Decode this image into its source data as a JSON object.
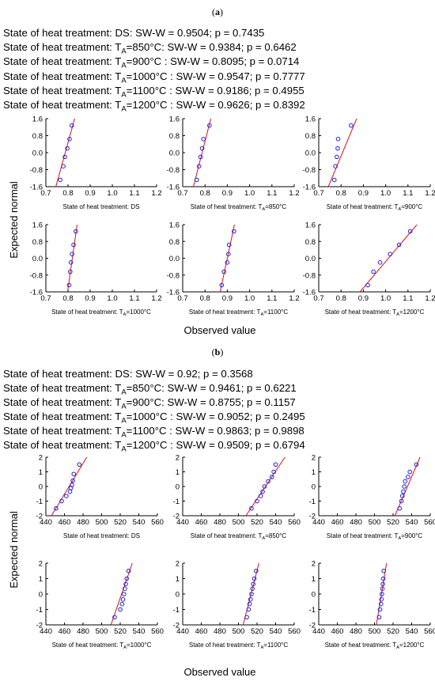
{
  "panel_labels": [
    "(a)",
    "(b)"
  ],
  "stats_lines": [
    {
      "prefix": "State of heat treatment: ",
      "base": "DS",
      "sub": "",
      "suffix": ":  SW-W = 0.9504; p = 0.7435"
    },
    {
      "prefix": "State of heat treatment: ",
      "base": "T",
      "sub": "A",
      "suffix": "=850°C:  SW-W = 0.9384; p = 0.6462"
    },
    {
      "prefix": "State of heat treatment: ",
      "base": "T",
      "sub": "A",
      "suffix": "=900°C :  SW-W = 0.8095; p = 0.0714"
    },
    {
      "prefix": "State of heat treatment: ",
      "base": "T",
      "sub": "A",
      "suffix": "=1000°C :  SW-W = 0.9547; p = 0.7777"
    },
    {
      "prefix": "State of heat treatment: ",
      "base": "T",
      "sub": "A",
      "suffix": "=1100°C :  SW-W = 0.9186; p = 0.4955"
    },
    {
      "prefix": "State of heat treatment: ",
      "base": "T",
      "sub": "A",
      "suffix": "=1200°C :  SW-W = 0.9626; p = 0.8392"
    },
    {
      "prefix": "State of heat treatment: ",
      "base": "DS",
      "sub": "",
      "suffix": ":  SW-W = 0.92; p = 0.3568"
    },
    {
      "prefix": "State of heat treatment: ",
      "base": "T",
      "sub": "A",
      "suffix": "=850°C:  SW-W = 0.9461; p = 0.6221"
    },
    {
      "prefix": "State of heat treatment: ",
      "base": "T",
      "sub": "A",
      "suffix": "=900°C:  SW-W = 0.8755; p = 0.1157"
    },
    {
      "prefix": "State of heat treatment: ",
      "base": "T",
      "sub": "A",
      "suffix": "=1000°C :  SW-W = 0.9052; p = 0.2495"
    },
    {
      "prefix": "State of heat treatment: ",
      "base": "T",
      "sub": "A",
      "suffix": "=1100°C :  SW-W = 0.9863; p = 0.9898"
    },
    {
      "prefix": "State of heat treatment: ",
      "base": "T",
      "sub": "A",
      "suffix": "=1200°C :  SW-W = 0.9509; p = 0.6794"
    }
  ],
  "colors": {
    "points": "#1f22e0",
    "fit_line": "#e01010",
    "axis": "#000000",
    "text": "#000000"
  },
  "y_axis_label": "Expected normal",
  "x_axis_label": "Observed value",
  "chart_data": [
    {
      "type": "scatter",
      "panel": "(a)",
      "title_prefix": "State of heat treatment: ",
      "title_base": "DS",
      "title_sub": "",
      "title_suffix": "",
      "xlim": [
        0.7,
        1.2
      ],
      "ylim": [
        -1.6,
        1.6
      ],
      "xticks": [
        "0.7",
        "0.8",
        "0.9",
        "1.0",
        "1.1",
        "1.2"
      ],
      "yticks": [
        "1.6",
        "0.8",
        "0.0",
        "-0.8",
        "-1.6"
      ],
      "x": [
        0.765,
        0.779,
        0.786,
        0.797,
        0.807,
        0.817
      ],
      "y": [
        -1.28,
        -0.64,
        -0.2,
        0.2,
        0.64,
        1.28
      ],
      "fit_line": [
        [
          0.745,
          -1.6
        ],
        [
          0.83,
          1.6
        ]
      ]
    },
    {
      "type": "scatter",
      "panel": "(a)",
      "title_prefix": "State of heat treatment: ",
      "title_base": "T",
      "title_sub": "A",
      "title_suffix": "=850°C",
      "xlim": [
        0.7,
        1.2
      ],
      "ylim": [
        -1.6,
        1.6
      ],
      "xticks": [
        "0.7",
        "0.8",
        "0.9",
        "1.0",
        "1.1",
        "1.2"
      ],
      "yticks": [
        "1.6",
        "0.8",
        "0.0",
        "-0.8",
        "-1.6"
      ],
      "x": [
        0.763,
        0.773,
        0.78,
        0.787,
        0.793,
        0.82
      ],
      "y": [
        -1.28,
        -0.64,
        -0.2,
        0.2,
        0.64,
        1.28
      ],
      "fit_line": [
        [
          0.748,
          -1.6
        ],
        [
          0.826,
          1.6
        ]
      ]
    },
    {
      "type": "scatter",
      "panel": "(a)",
      "title_prefix": "State of heat treatment: ",
      "title_base": "T",
      "title_sub": "A",
      "title_suffix": "=900°C",
      "xlim": [
        0.7,
        1.2
      ],
      "ylim": [
        -1.6,
        1.6
      ],
      "xticks": [
        "0.7",
        "0.8",
        "0.9",
        "1.0",
        "1.1",
        "1.2"
      ],
      "yticks": [
        "1.6",
        "0.8",
        "0.0",
        "-0.8",
        "-1.6"
      ],
      "x": [
        0.77,
        0.775,
        0.781,
        0.785,
        0.787,
        0.845
      ],
      "y": [
        -1.28,
        -0.64,
        -0.2,
        0.2,
        0.64,
        1.28
      ],
      "fit_line": [
        [
          0.743,
          -1.6
        ],
        [
          0.87,
          1.6
        ]
      ]
    },
    {
      "type": "scatter",
      "panel": "(a)",
      "title_prefix": "State of heat treatment: ",
      "title_base": "T",
      "title_sub": "A",
      "title_suffix": "=1000°C",
      "xlim": [
        0.7,
        1.2
      ],
      "ylim": [
        -1.6,
        1.6
      ],
      "xticks": [
        "0.7",
        "0.8",
        "0.9",
        "1.0",
        "1.1",
        "1.2"
      ],
      "yticks": [
        "1.6",
        "0.8",
        "0.0",
        "-0.8",
        "-1.6"
      ],
      "x": [
        0.805,
        0.81,
        0.813,
        0.818,
        0.825,
        0.835
      ],
      "y": [
        -1.28,
        -0.64,
        -0.2,
        0.2,
        0.64,
        1.28
      ],
      "fit_line": [
        [
          0.798,
          -1.6
        ],
        [
          0.841,
          1.6
        ]
      ]
    },
    {
      "type": "scatter",
      "panel": "(a)",
      "title_prefix": "State of heat treatment: ",
      "title_base": "T",
      "title_sub": "A",
      "title_suffix": "=1100°C",
      "xlim": [
        0.7,
        1.2
      ],
      "ylim": [
        -1.6,
        1.6
      ],
      "xticks": [
        "0.7",
        "0.8",
        "0.9",
        "1.0",
        "1.1",
        "1.2"
      ],
      "yticks": [
        "1.6",
        "0.8",
        "0.0",
        "-0.8",
        "-1.6"
      ],
      "x": [
        0.875,
        0.885,
        0.9,
        0.905,
        0.908,
        0.93
      ],
      "y": [
        -1.28,
        -0.64,
        -0.2,
        0.2,
        0.64,
        1.28
      ],
      "fit_line": [
        [
          0.868,
          -1.6
        ],
        [
          0.932,
          1.6
        ]
      ]
    },
    {
      "type": "scatter",
      "panel": "(a)",
      "title_prefix": "State of heat treatment: ",
      "title_base": "T",
      "title_sub": "A",
      "title_suffix": "=1200°C",
      "xlim": [
        0.7,
        1.2
      ],
      "ylim": [
        -1.6,
        1.6
      ],
      "xticks": [
        "0.7",
        "0.8",
        "0.9",
        "1.0",
        "1.1",
        "1.2"
      ],
      "yticks": [
        "1.6",
        "0.8",
        "0.0",
        "-0.8",
        "-1.6"
      ],
      "x": [
        0.92,
        0.945,
        0.975,
        1.02,
        1.06,
        1.11
      ],
      "y": [
        -1.28,
        -0.64,
        -0.2,
        0.2,
        0.64,
        1.28
      ],
      "fit_line": [
        [
          0.885,
          -1.6
        ],
        [
          1.14,
          1.6
        ]
      ]
    },
    {
      "type": "scatter",
      "panel": "(b)",
      "title_prefix": "State of heat treatment: ",
      "title_base": "DS",
      "title_sub": "",
      "title_suffix": "",
      "xlim": [
        440,
        560
      ],
      "ylim": [
        -2,
        2
      ],
      "xticks": [
        "440",
        "460",
        "480",
        "500",
        "520",
        "540",
        "560"
      ],
      "yticks": [
        "2",
        "1",
        "0",
        "-1",
        "-2"
      ],
      "x": [
        451,
        457,
        462,
        466,
        467,
        468,
        469,
        470,
        476
      ],
      "y": [
        -1.5,
        -1.0,
        -0.65,
        -0.35,
        -0.1,
        0.1,
        0.4,
        0.85,
        1.5
      ],
      "fit_line": [
        [
          446,
          -2
        ],
        [
          484,
          2
        ]
      ]
    },
    {
      "type": "scatter",
      "panel": "(b)",
      "title_prefix": "State of heat treatment: ",
      "title_base": "T",
      "title_sub": "A",
      "title_suffix": "=850°C",
      "xlim": [
        440,
        560
      ],
      "ylim": [
        -2,
        2
      ],
      "xticks": [
        "440",
        "460",
        "480",
        "500",
        "520",
        "540",
        "560"
      ],
      "yticks": [
        "2",
        "1",
        "0",
        "-1",
        "-2"
      ],
      "x": [
        514,
        520,
        524,
        526,
        528,
        532,
        536,
        538,
        540
      ],
      "y": [
        -1.5,
        -1.0,
        -0.65,
        -0.35,
        0.0,
        0.35,
        0.65,
        1.0,
        1.5
      ],
      "fit_line": [
        [
          508,
          -2
        ],
        [
          550,
          2
        ]
      ]
    },
    {
      "type": "scatter",
      "panel": "(b)",
      "title_prefix": "State of heat treatment: ",
      "title_base": "T",
      "title_sub": "A",
      "title_suffix": "=900°C",
      "xlim": [
        440,
        560
      ],
      "ylim": [
        -2,
        2
      ],
      "xticks": [
        "440",
        "460",
        "480",
        "500",
        "520",
        "540",
        "560"
      ],
      "yticks": [
        "2",
        "1",
        "0",
        "-1",
        "-2"
      ],
      "x": [
        527,
        529,
        530,
        531,
        532,
        533,
        536,
        538,
        545
      ],
      "y": [
        -1.5,
        -1.0,
        -0.65,
        -0.35,
        0.0,
        0.35,
        0.65,
        1.0,
        1.5
      ],
      "fit_line": [
        [
          522,
          -2
        ],
        [
          549,
          2
        ]
      ]
    },
    {
      "type": "scatter",
      "panel": "(b)",
      "title_prefix": "State of heat treatment: ",
      "title_base": "T",
      "title_sub": "A",
      "title_suffix": "=1000°C",
      "xlim": [
        440,
        560
      ],
      "ylim": [
        -2,
        2
      ],
      "xticks": [
        "440",
        "460",
        "480",
        "500",
        "520",
        "540",
        "560"
      ],
      "yticks": [
        "2",
        "1",
        "0",
        "-1",
        "-2"
      ],
      "x": [
        514,
        520,
        522,
        523,
        524,
        525,
        526,
        527,
        529
      ],
      "y": [
        -1.5,
        -1.0,
        -0.65,
        -0.35,
        0.0,
        0.35,
        0.65,
        1.0,
        1.5
      ],
      "fit_line": [
        [
          510,
          -2
        ],
        [
          533,
          2
        ]
      ]
    },
    {
      "type": "scatter",
      "panel": "(b)",
      "title_prefix": "State of heat treatment: ",
      "title_base": "T",
      "title_sub": "A",
      "title_suffix": "=1100°C",
      "xlim": [
        440,
        560
      ],
      "ylim": [
        -2,
        2
      ],
      "xticks": [
        "440",
        "460",
        "480",
        "500",
        "520",
        "540",
        "560"
      ],
      "yticks": [
        "2",
        "1",
        "0",
        "-1",
        "-2"
      ],
      "x": [
        509,
        511,
        512,
        513,
        514,
        515,
        516,
        517,
        519
      ],
      "y": [
        -1.5,
        -1.0,
        -0.65,
        -0.35,
        0.0,
        0.35,
        0.65,
        1.0,
        1.5
      ],
      "fit_line": [
        [
          505,
          -2
        ],
        [
          522,
          2
        ]
      ]
    },
    {
      "type": "scatter",
      "panel": "(b)",
      "title_prefix": "State of heat treatment: ",
      "title_base": "T",
      "title_sub": "A",
      "title_suffix": "=1200°C",
      "xlim": [
        440,
        560
      ],
      "ylim": [
        -2,
        2
      ],
      "xticks": [
        "440",
        "460",
        "480",
        "500",
        "520",
        "540",
        "560"
      ],
      "yticks": [
        "2",
        "1",
        "0",
        "-1",
        "-2"
      ],
      "x": [
        505,
        506,
        507,
        507.5,
        508,
        508.5,
        509,
        509.5,
        510
      ],
      "y": [
        -1.5,
        -1.0,
        -0.65,
        -0.35,
        0.0,
        0.35,
        0.65,
        1.0,
        1.5
      ],
      "fit_line": [
        [
          502,
          -2
        ],
        [
          513,
          2
        ]
      ]
    }
  ]
}
